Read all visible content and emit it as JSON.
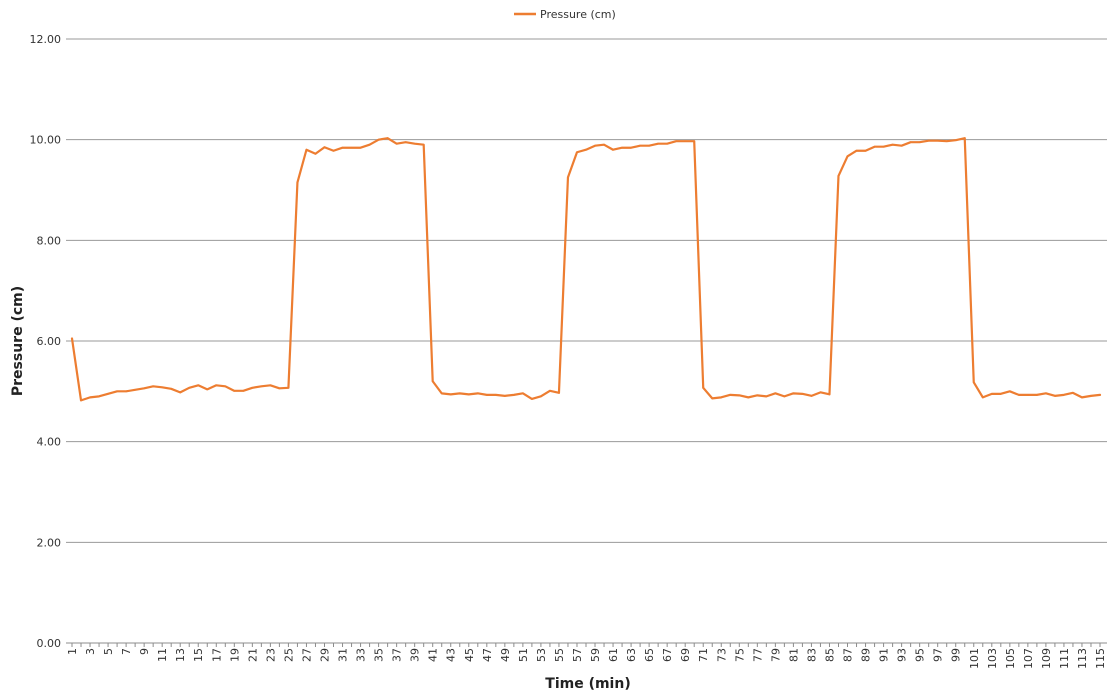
{
  "chart_data": {
    "type": "line",
    "title": "",
    "xlabel": "Time (min)",
    "ylabel": "Pressure (cm)",
    "ylim": [
      0,
      12
    ],
    "y_ticks": [
      "0.00",
      "2.00",
      "4.00",
      "6.00",
      "8.00",
      "10.00",
      "12.00"
    ],
    "x_tick_labels": [
      "1",
      "3",
      "5",
      "7",
      "9",
      "11",
      "13",
      "15",
      "17",
      "19",
      "21",
      "23",
      "25",
      "27",
      "29",
      "31",
      "33",
      "35",
      "37",
      "39",
      "41",
      "43",
      "45",
      "47",
      "49",
      "51",
      "53",
      "55",
      "57",
      "59",
      "61",
      "63",
      "65",
      "67",
      "69",
      "71",
      "73",
      "75",
      "77",
      "79",
      "81",
      "83",
      "85",
      "87",
      "89",
      "91",
      "93",
      "95",
      "97",
      "99",
      "101",
      "103",
      "105",
      "107",
      "109",
      "111",
      "113",
      "115"
    ],
    "grid": "horizontal",
    "legend_position": "top-center",
    "series": [
      {
        "name": "Pressure (cm)",
        "color": "#ed7d31",
        "x": [
          1,
          2,
          3,
          4,
          5,
          6,
          7,
          8,
          9,
          10,
          11,
          12,
          13,
          14,
          15,
          16,
          17,
          18,
          19,
          20,
          21,
          22,
          23,
          24,
          25,
          26,
          27,
          28,
          29,
          30,
          31,
          32,
          33,
          34,
          35,
          36,
          37,
          38,
          39,
          40,
          41,
          42,
          43,
          44,
          45,
          46,
          47,
          48,
          49,
          50,
          51,
          52,
          53,
          54,
          55,
          56,
          57,
          58,
          59,
          60,
          61,
          62,
          63,
          64,
          65,
          66,
          67,
          68,
          69,
          70,
          71,
          72,
          73,
          74,
          75,
          76,
          77,
          78,
          79,
          80,
          81,
          82,
          83,
          84,
          85,
          86,
          87,
          88,
          89,
          90,
          91,
          92,
          93,
          94,
          95,
          96,
          97,
          98,
          99,
          100,
          101,
          102,
          103,
          104,
          105,
          106,
          107,
          108,
          109,
          110,
          111,
          112,
          113,
          114,
          115
        ],
        "values": [
          6.05,
          4.82,
          4.88,
          4.9,
          4.95,
          5.0,
          5.0,
          5.03,
          5.06,
          5.1,
          5.08,
          5.05,
          4.98,
          5.07,
          5.12,
          5.04,
          5.12,
          5.1,
          5.01,
          5.01,
          5.07,
          5.1,
          5.12,
          5.06,
          5.07,
          9.15,
          9.8,
          9.72,
          9.85,
          9.78,
          9.84,
          9.84,
          9.84,
          9.9,
          10.0,
          10.03,
          9.92,
          9.95,
          9.92,
          9.9,
          5.2,
          4.96,
          4.94,
          4.96,
          4.94,
          4.96,
          4.93,
          4.93,
          4.91,
          4.93,
          4.96,
          4.85,
          4.9,
          5.01,
          4.97,
          9.25,
          9.75,
          9.8,
          9.88,
          9.9,
          9.8,
          9.84,
          9.84,
          9.88,
          9.88,
          9.92,
          9.92,
          9.97,
          9.97,
          9.97,
          5.07,
          4.86,
          4.88,
          4.93,
          4.92,
          4.88,
          4.92,
          4.9,
          4.96,
          4.9,
          4.96,
          4.95,
          4.91,
          4.98,
          4.94,
          9.28,
          9.67,
          9.78,
          9.78,
          9.86,
          9.86,
          9.9,
          9.88,
          9.95,
          9.95,
          9.98,
          9.98,
          9.97,
          9.99,
          10.03,
          5.18,
          4.88,
          4.95,
          4.95,
          5.0,
          4.93,
          4.93,
          4.93,
          4.96,
          4.91,
          4.93,
          4.97,
          4.88,
          4.91,
          4.93
        ]
      }
    ]
  }
}
